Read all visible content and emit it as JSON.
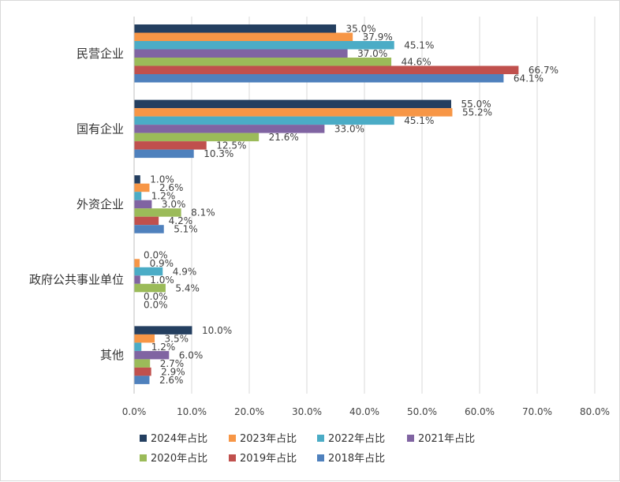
{
  "chart_data": {
    "type": "bar",
    "orientation": "horizontal",
    "title": "",
    "xlabel": "",
    "ylabel": "",
    "xlim": [
      0,
      80
    ],
    "x_ticks": [
      "0.0%",
      "10.0%",
      "20.0%",
      "30.0%",
      "40.0%",
      "50.0%",
      "60.0%",
      "70.0%",
      "80.0%"
    ],
    "grid": true,
    "legend_position": "bottom",
    "categories": [
      "民营企业",
      "国有企业",
      "外资企业",
      "政府公共事业单位",
      "其他"
    ],
    "series": [
      {
        "name": "2024年占比",
        "color": "#243f60",
        "values": [
          35.0,
          55.0,
          1.0,
          0.0,
          10.0
        ],
        "labels": [
          "35.0%",
          "55.0%",
          "1.0%",
          "0.0%",
          "10.0%"
        ]
      },
      {
        "name": "2023年占比",
        "color": "#f79646",
        "values": [
          37.9,
          55.2,
          2.6,
          0.9,
          3.5
        ],
        "labels": [
          "37.9%",
          "55.2%",
          "2.6%",
          "0.9%",
          "3.5%"
        ]
      },
      {
        "name": "2022年占比",
        "color": "#4bacc6",
        "values": [
          45.1,
          45.1,
          1.2,
          4.9,
          1.2
        ],
        "labels": [
          "45.1%",
          "45.1%",
          "1.2%",
          "4.9%",
          "1.2%"
        ]
      },
      {
        "name": "2021年占比",
        "color": "#8064a2",
        "values": [
          37.0,
          33.0,
          3.0,
          1.0,
          6.0
        ],
        "labels": [
          "37.0%",
          "33.0%",
          "3.0%",
          "1.0%",
          "6.0%"
        ]
      },
      {
        "name": "2020年占比",
        "color": "#9bbb59",
        "values": [
          44.6,
          21.6,
          8.1,
          5.4,
          2.7
        ],
        "labels": [
          "44.6%",
          "21.6%",
          "8.1%",
          "5.4%",
          "2.7%"
        ]
      },
      {
        "name": "2019年占比",
        "color": "#c0504d",
        "values": [
          66.7,
          12.5,
          4.2,
          0.0,
          2.9
        ],
        "labels": [
          "66.7%",
          "12.5%",
          "4.2%",
          "0.0%",
          "2.9%"
        ]
      },
      {
        "name": "2018年占比",
        "color": "#4f81bd",
        "values": [
          64.1,
          10.3,
          5.1,
          0.0,
          2.6
        ],
        "labels": [
          "64.1%",
          "10.3%",
          "5.1%",
          "0.0%",
          "2.6%"
        ]
      }
    ]
  }
}
